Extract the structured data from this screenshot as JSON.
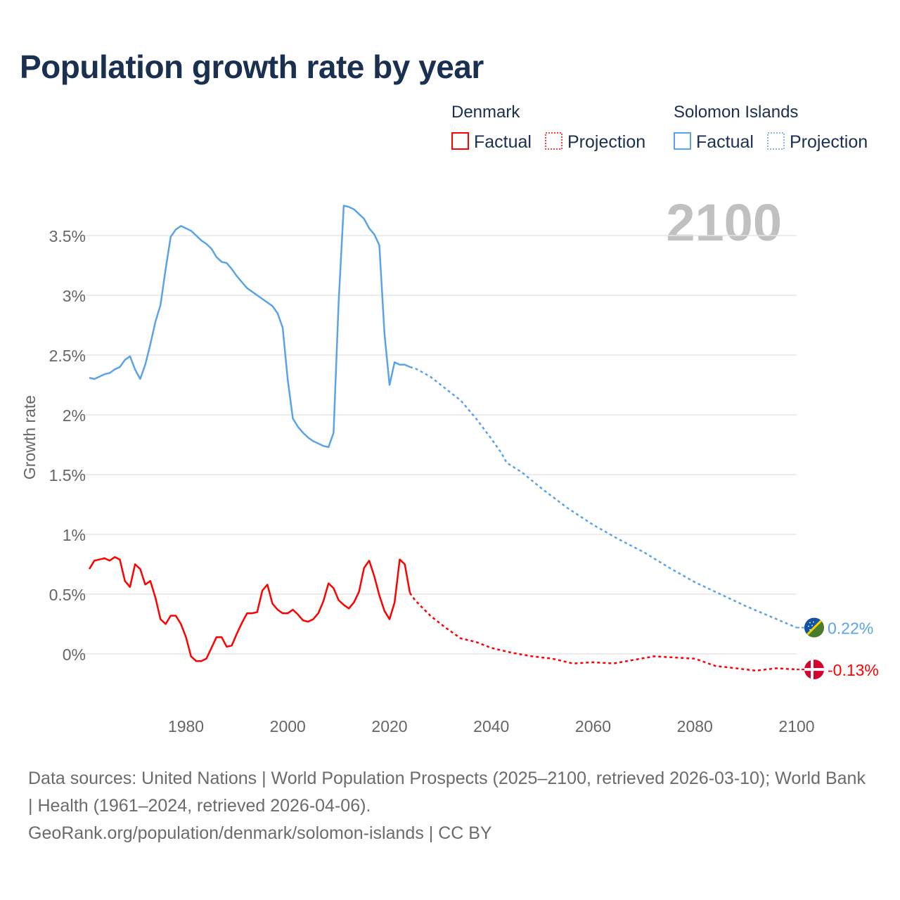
{
  "title": "Population growth rate by year",
  "legend": {
    "groups": [
      {
        "name": "Denmark",
        "color": "#ff0000",
        "factual": "Factual",
        "projection": "Projection"
      },
      {
        "name": "Solomon Islands",
        "color": "#5ba3e8",
        "factual": "Factual",
        "projection": "Projection"
      }
    ]
  },
  "year_label": "2100",
  "sources": {
    "line1": "Data sources: United Nations | World Population Prospects (2025–2100, retrieved 2026-03-10); World Bank | Health (1961–2024, retrieved 2026-04-06).",
    "line2": "GeoRank.org/population/denmark/solomon-islands | CC BY"
  },
  "chart_data": {
    "type": "line",
    "title": "Population growth rate by year",
    "xlabel": "",
    "ylabel": "Growth rate",
    "xlim": [
      1961,
      2100
    ],
    "ylim": [
      -0.35,
      3.8
    ],
    "xticks": [
      1980,
      2000,
      2020,
      2040,
      2060,
      2080,
      2100
    ],
    "xtick_labels": [
      "1980",
      "2000",
      "2020",
      "2040",
      "2060",
      "2080",
      "2100"
    ],
    "yticks": [
      0,
      0.5,
      1,
      1.5,
      2,
      2.5,
      3,
      3.5
    ],
    "ytick_labels": [
      "0%",
      "0.5%",
      "1%",
      "1.5%",
      "2%",
      "2.5%",
      "3%",
      "3.5%"
    ],
    "grid": true,
    "legend_position": "top-right",
    "series": [
      {
        "name": "Denmark",
        "color": "#ff0000",
        "end_label": "-0.13%",
        "factual": {
          "x": [
            1961,
            1962,
            1963,
            1964,
            1965,
            1966,
            1967,
            1968,
            1969,
            1970,
            1971,
            1972,
            1973,
            1974,
            1975,
            1976,
            1977,
            1978,
            1979,
            1980,
            1981,
            1982,
            1983,
            1984,
            1985,
            1986,
            1987,
            1988,
            1989,
            1990,
            1991,
            1992,
            1993,
            1994,
            1995,
            1996,
            1997,
            1998,
            1999,
            2000,
            2001,
            2002,
            2003,
            2004,
            2005,
            2006,
            2007,
            2008,
            2009,
            2010,
            2011,
            2012,
            2013,
            2014,
            2015,
            2016,
            2017,
            2018,
            2019,
            2020,
            2021,
            2022,
            2023,
            2024
          ],
          "y": [
            0.71,
            0.78,
            0.79,
            0.8,
            0.78,
            0.81,
            0.79,
            0.61,
            0.56,
            0.75,
            0.71,
            0.58,
            0.61,
            0.47,
            0.29,
            0.25,
            0.32,
            0.32,
            0.25,
            0.14,
            -0.02,
            -0.06,
            -0.06,
            -0.04,
            0.05,
            0.14,
            0.14,
            0.06,
            0.07,
            0.17,
            0.26,
            0.34,
            0.34,
            0.35,
            0.53,
            0.58,
            0.42,
            0.37,
            0.34,
            0.34,
            0.37,
            0.33,
            0.28,
            0.27,
            0.29,
            0.34,
            0.44,
            0.59,
            0.55,
            0.45,
            0.41,
            0.38,
            0.43,
            0.52,
            0.72,
            0.78,
            0.65,
            0.49,
            0.36,
            0.29,
            0.43,
            0.79,
            0.75,
            0.51
          ]
        },
        "projection": {
          "x": [
            2024,
            2025,
            2028,
            2031,
            2034,
            2037,
            2040,
            2044,
            2048,
            2052,
            2056,
            2060,
            2064,
            2068,
            2072,
            2076,
            2080,
            2084,
            2088,
            2092,
            2096,
            2100
          ],
          "y": [
            0.51,
            0.45,
            0.32,
            0.22,
            0.13,
            0.1,
            0.05,
            0.01,
            -0.02,
            -0.04,
            -0.08,
            -0.07,
            -0.08,
            -0.05,
            -0.02,
            -0.03,
            -0.04,
            -0.1,
            -0.12,
            -0.14,
            -0.12,
            -0.13
          ]
        }
      },
      {
        "name": "Solomon Islands",
        "color": "#5ba3e8",
        "end_label": "0.22%",
        "factual": {
          "x": [
            1961,
            1962,
            1963,
            1964,
            1965,
            1966,
            1967,
            1968,
            1969,
            1970,
            1971,
            1972,
            1973,
            1974,
            1975,
            1976,
            1977,
            1978,
            1979,
            1980,
            1981,
            1982,
            1983,
            1984,
            1985,
            1986,
            1987,
            1988,
            1989,
            1990,
            1991,
            1992,
            1993,
            1994,
            1995,
            1996,
            1997,
            1998,
            1999,
            2000,
            2001,
            2002,
            2003,
            2004,
            2005,
            2006,
            2007,
            2008,
            2009,
            2010,
            2011,
            2012,
            2013,
            2014,
            2015,
            2016,
            2017,
            2018,
            2019,
            2020,
            2021,
            2022,
            2023,
            2024
          ],
          "y": [
            2.31,
            2.3,
            2.32,
            2.34,
            2.35,
            2.38,
            2.4,
            2.46,
            2.49,
            2.38,
            2.3,
            2.42,
            2.59,
            2.78,
            2.92,
            3.22,
            3.49,
            3.55,
            3.58,
            3.56,
            3.54,
            3.5,
            3.46,
            3.43,
            3.39,
            3.32,
            3.28,
            3.27,
            3.22,
            3.16,
            3.11,
            3.06,
            3.03,
            3.0,
            2.97,
            2.94,
            2.91,
            2.85,
            2.73,
            2.29,
            1.97,
            1.9,
            1.85,
            1.81,
            1.78,
            1.76,
            1.74,
            1.73,
            1.85,
            2.94,
            3.75,
            3.74,
            3.72,
            3.68,
            3.64,
            3.56,
            3.51,
            3.42,
            2.68,
            2.25,
            2.44,
            2.42,
            2.42,
            2.4
          ]
        },
        "projection": {
          "x": [
            2024,
            2025,
            2028,
            2031,
            2034,
            2037,
            2040,
            2042,
            2043,
            2046,
            2050,
            2055,
            2060,
            2065,
            2070,
            2075,
            2080,
            2085,
            2090,
            2095,
            2100
          ],
          "y": [
            2.4,
            2.39,
            2.32,
            2.22,
            2.12,
            1.97,
            1.8,
            1.68,
            1.6,
            1.52,
            1.38,
            1.22,
            1.08,
            0.96,
            0.85,
            0.72,
            0.6,
            0.5,
            0.4,
            0.31,
            0.22
          ]
        }
      }
    ]
  }
}
